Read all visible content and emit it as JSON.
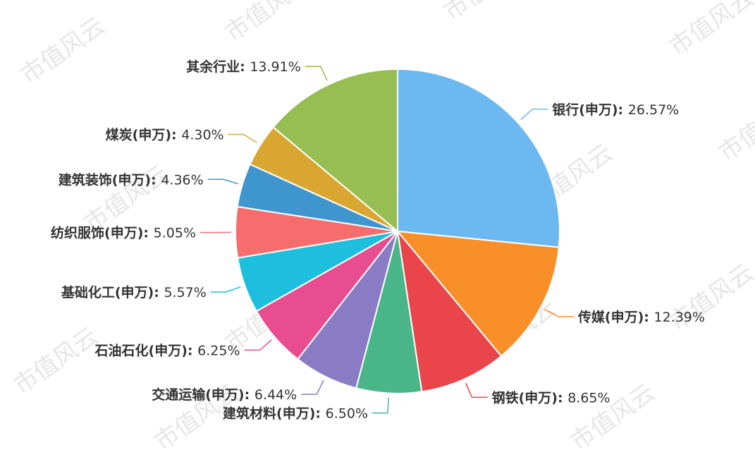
{
  "chart_data": {
    "type": "pie",
    "title": "",
    "label_separator": ": ",
    "slices": [
      {
        "name": "银行(申万)",
        "value": 26.57,
        "label": "26.57%",
        "color": "#6cb8f0"
      },
      {
        "name": "传媒(申万)",
        "value": 12.39,
        "label": "12.39%",
        "color": "#f98f28"
      },
      {
        "name": "钢铁(申万)",
        "value": 8.65,
        "label": "8.65%",
        "color": "#e9454a"
      },
      {
        "name": "建筑材料(申万)",
        "value": 6.5,
        "label": "6.50%",
        "color": "#4bb58a"
      },
      {
        "name": "交通运输(申万)",
        "value": 6.44,
        "label": "6.44%",
        "color": "#8a7bc5"
      },
      {
        "name": "石油石化(申万)",
        "value": 6.25,
        "label": "6.25%",
        "color": "#e84d8f"
      },
      {
        "name": "基础化工(申万)",
        "value": 5.57,
        "label": "5.57%",
        "color": "#1ebfde"
      },
      {
        "name": "纺织服饰(申万)",
        "value": 5.05,
        "label": "5.05%",
        "color": "#f76c6c"
      },
      {
        "name": "建筑装饰(申万)",
        "value": 4.36,
        "label": "4.36%",
        "color": "#3f96cf"
      },
      {
        "name": "煤炭(申万)",
        "value": 4.3,
        "label": "4.30%",
        "color": "#d9a731"
      },
      {
        "name": "其余行业",
        "value": 13.91,
        "label": "13.91%",
        "color": "#96be52"
      }
    ]
  },
  "watermark": {
    "text": "市值风云"
  }
}
